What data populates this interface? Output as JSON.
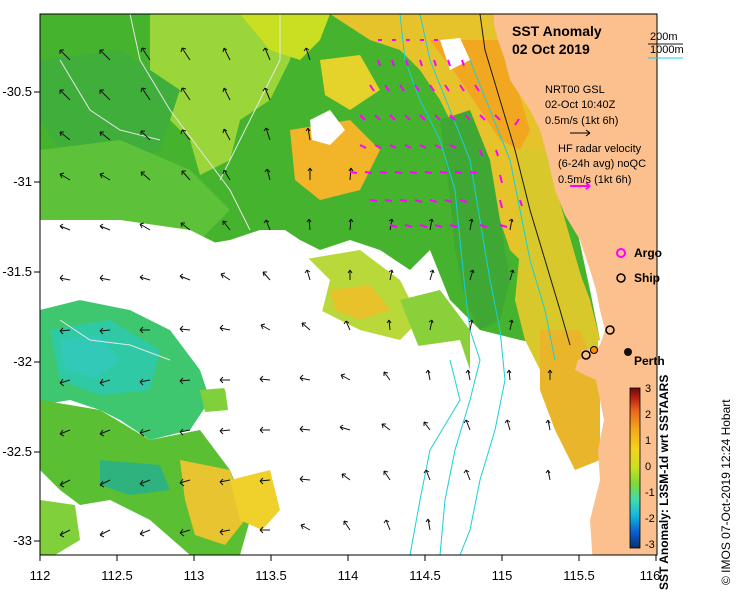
{
  "map": {
    "title_line1": "SST Anomaly",
    "title_line2": "02 Oct 2019",
    "depth_legend": {
      "shallow": "200m",
      "deep": "1000m",
      "shallow_color": "#1a1a1a",
      "deep_color": "#19d0d6"
    },
    "wind_legend": {
      "line1": "NRT00 GSL",
      "line2": "02-Oct 10:40Z",
      "line3": "0.5m/s (1kt 6h)"
    },
    "radar_legend": {
      "line1": "HF radar velocity",
      "line2": "(6-24h avg) noQC",
      "line3": "0.5m/s (1kt 6h)"
    },
    "markers": {
      "argo": "Argo",
      "ship": "Ship",
      "argo_color": "#ff00ff"
    },
    "city": "Perth",
    "x_ticks": [
      "112",
      "112.5",
      "113",
      "113.5",
      "114",
      "114.5",
      "115",
      "115.5",
      "116"
    ],
    "y_ticks": [
      "-30.5",
      "-31",
      "-31.5",
      "-32",
      "-32.5",
      "-33"
    ],
    "colorbar": {
      "label": "SST Anomaly: L3SM-1d wrt SSTAARS",
      "ticks": [
        "3",
        "2",
        "1",
        "0",
        "-1",
        "-2",
        "-3"
      ],
      "colors": [
        "#08306b",
        "#0a5fd1",
        "#12b5e0",
        "#3fdcb0",
        "#7fd83a",
        "#c8e021",
        "#f4d21b",
        "#f4a81d",
        "#e8651c",
        "#b51e12",
        "#6e0b0b"
      ]
    },
    "credit": "© IMOS 07-Oct-2019 12:24 Hobart",
    "colors": {
      "land": "#fbc08d",
      "ocean_no_data": "#ffffff",
      "anomaly_warm": "#f2c232",
      "anomaly_neutral": "#46b32e",
      "anomaly_cool": "#2fc99a"
    }
  }
}
